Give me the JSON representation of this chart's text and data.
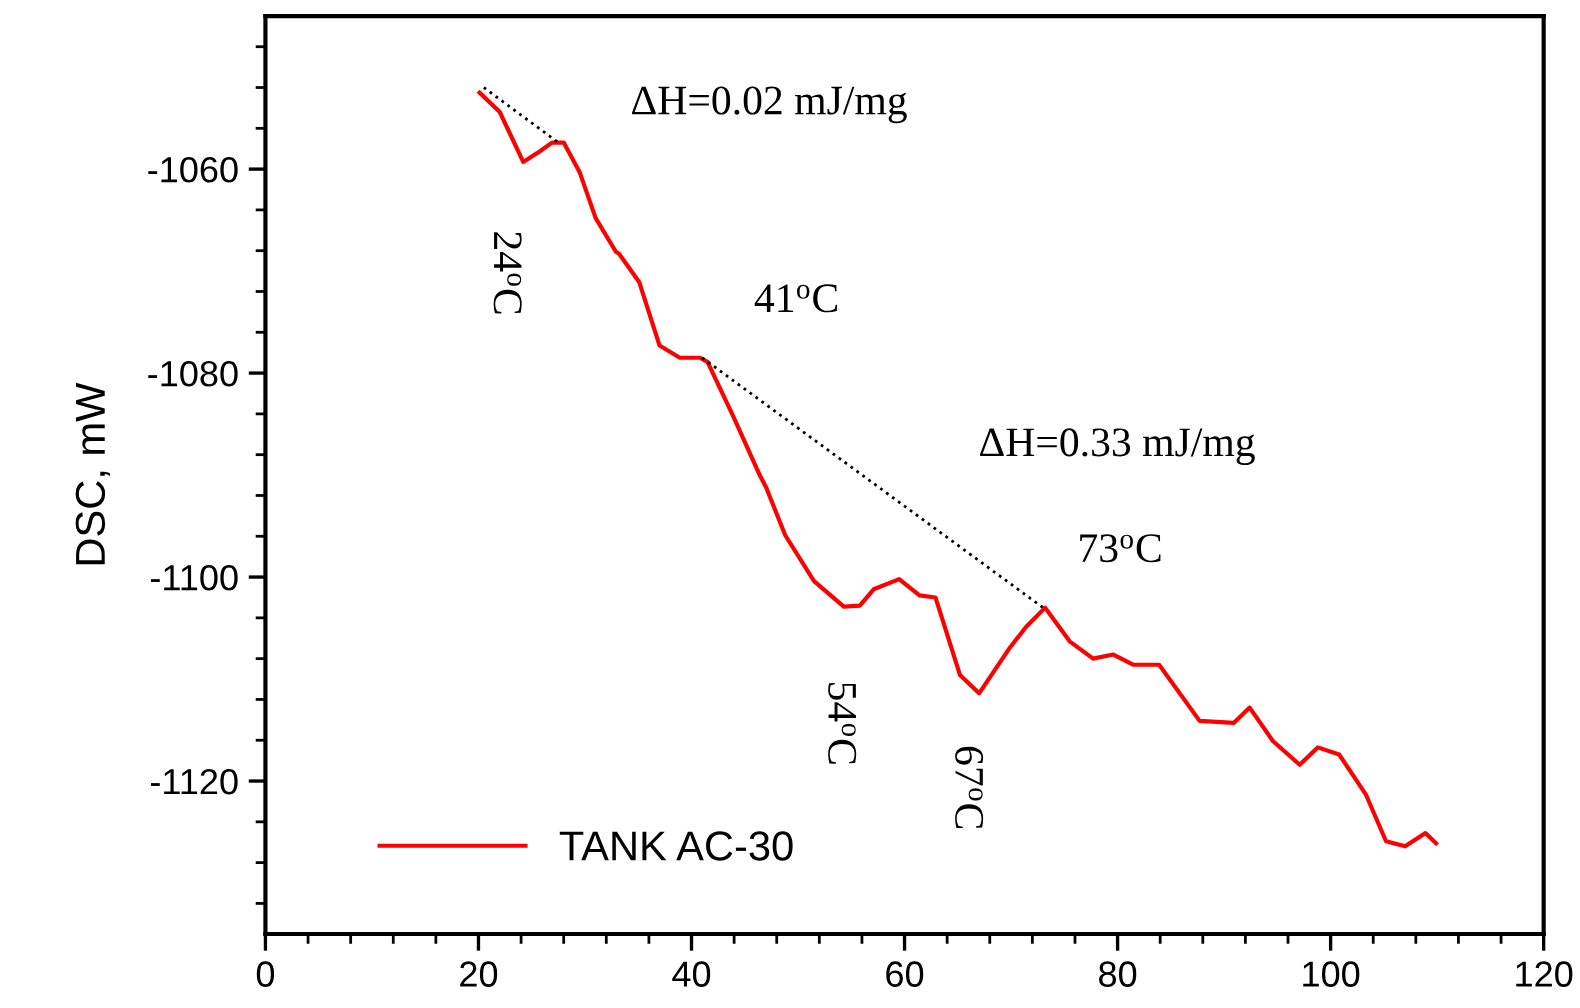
{
  "chart_data": {
    "type": "line",
    "ylabel": "DSC, mW",
    "xlim": [
      0,
      120
    ],
    "xticks": [
      0,
      20,
      40,
      60,
      80,
      100,
      120
    ],
    "ylim": [
      -1135,
      -1045
    ],
    "yticks": [
      -1120,
      -1100,
      -1080,
      -1060
    ],
    "grid": false,
    "legend": "bottom left",
    "marker": "none",
    "series": [
      {
        "name": "TANK AC-30",
        "color": "#ff0000",
        "line_style": "solid",
        "x": [
          20.1,
          22.0,
          24.2,
          25.7,
          26.9,
          28.0,
          29.5,
          31.0,
          32.9,
          33.2,
          35.1,
          37.0,
          38.9,
          40.8,
          41.5,
          43.9,
          46.4,
          47.0,
          48.8,
          51.5,
          54.3,
          55.8,
          57.1,
          59.5,
          61.4,
          62.9,
          65.2,
          67.0,
          69.9,
          71.4,
          73.2,
          75.5,
          77.7,
          79.6,
          81.5,
          83.9,
          87.7,
          90.9,
          92.4,
          94.6,
          97.1,
          98.8,
          100.8,
          103.3,
          105.2,
          107.0,
          108.9,
          109.9
        ],
        "values": [
          -1052.5,
          -1054.4,
          -1059.3,
          -1058.3,
          -1057.4,
          -1057.4,
          -1060.3,
          -1064.8,
          -1068.1,
          -1068.3,
          -1071.1,
          -1077.3,
          -1078.5,
          -1078.5,
          -1078.9,
          -1084.2,
          -1090.0,
          -1091.2,
          -1095.9,
          -1100.4,
          -1102.9,
          -1102.8,
          -1101.2,
          -1100.2,
          -1101.8,
          -1102.0,
          -1109.6,
          -1111.4,
          -1106.9,
          -1104.9,
          -1103.0,
          -1106.3,
          -1108.0,
          -1107.6,
          -1108.6,
          -1108.6,
          -1114.1,
          -1114.3,
          -1112.8,
          -1116.1,
          -1118.4,
          -1116.7,
          -1117.4,
          -1121.3,
          -1125.9,
          -1126.4,
          -1125.1,
          -1126.1
        ]
      },
      {
        "color": "#000000",
        "line_style": "dotted",
        "x": [
          20.5,
          27.5
        ],
        "values": [
          -1052.0,
          -1057.4
        ]
      },
      {
        "color": "#000000",
        "line_style": "dotted",
        "x": [
          41.0,
          73.0
        ],
        "values": [
          -1078.5,
          -1103.0
        ]
      }
    ],
    "annotations": [
      "ΔH=0.02 mJ/mg",
      {
        "text": "24$^{o}$C",
        "x": 24.2,
        "y": -1059.3
      },
      {
        "text": "41$^{o}$C",
        "x": 41.0,
        "y": -1078.5
      },
      {
        "text": "ΔH=0.33 mJ/mg",
        "x": 57.0,
        "y": -1090.7
      },
      {
        "text": "54$^{o}$C",
        "x": 54.3,
        "y": -1102.9
      },
      {
        "text": "67$^{o}$C",
        "x": 67.0,
        "y": -1111.4
      },
      {
        "text": "73$^{o}$C",
        "x": 73.2,
        "y": -1103.0
      }
    ]
  }
}
